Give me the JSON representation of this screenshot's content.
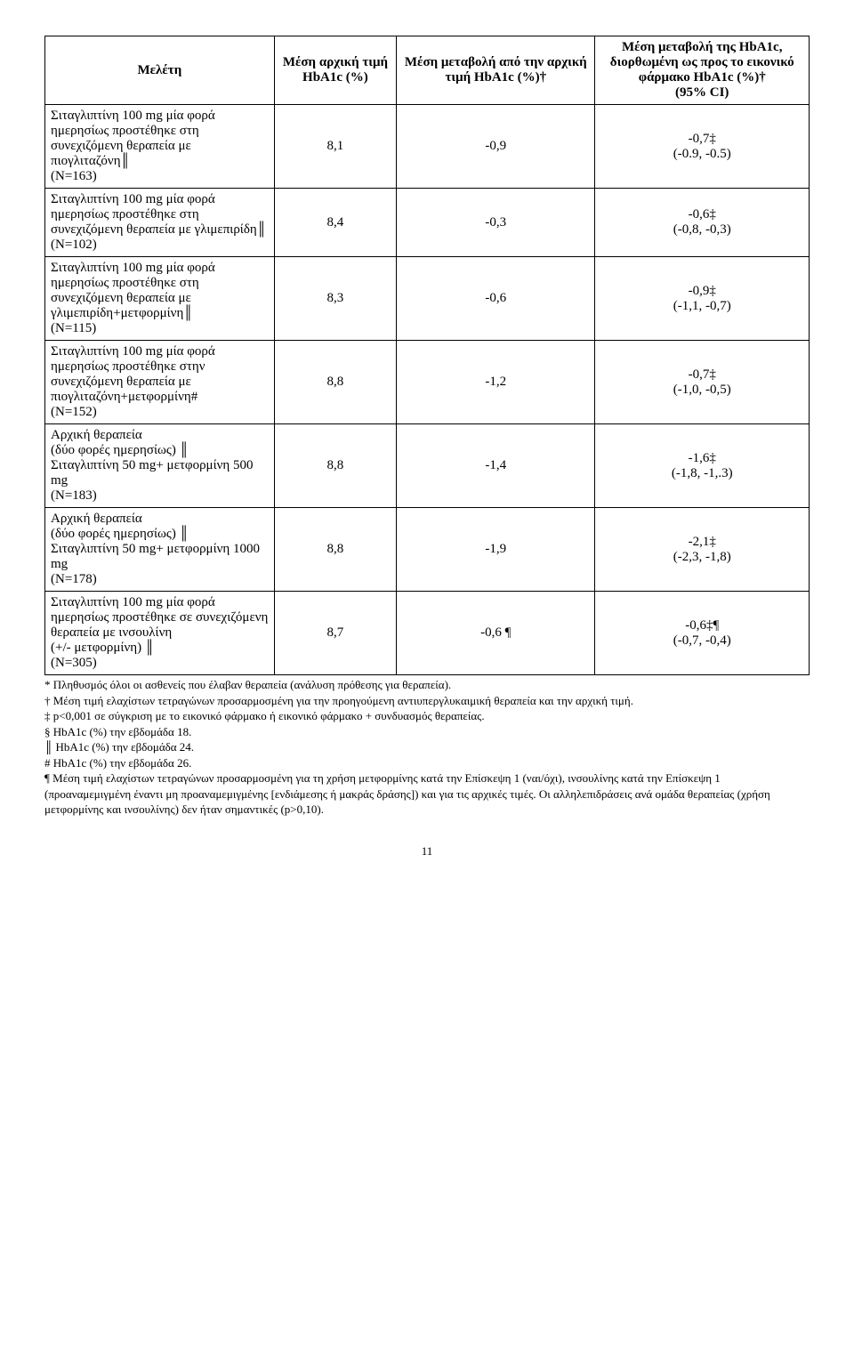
{
  "headers": {
    "study": "Μελέτη",
    "baseline": "Μέση αρχική τιμή HbA1c (%)",
    "change": "Μέση μεταβολή από την αρχική τιμή HbA1c (%)†",
    "corrected_l1": "Μέση μεταβολή της HbA1c, διορθωμένη ως προς το εικονικό φάρμακο HbA1c (%)†",
    "corrected_l2": "(95% CI)"
  },
  "rows": [
    {
      "study": "Σιταγλιπτίνη 100 mg μία φορά ημερησίως προστέθηκε στη συνεχιζόμενη θεραπεία με πιογλιταζόνη║\n(N=163)",
      "baseline": "8,1",
      "change": "-0,9",
      "corr_val": "-0,7‡",
      "corr_ci": "(-0.9, -0.5)"
    },
    {
      "study": "Σιταγλιπτίνη 100 mg μία φορά ημερησίως προστέθηκε στη συνεχιζόμενη θεραπεία με γλιμεπιρίδη║\n(N=102)",
      "baseline": "8,4",
      "change": "-0,3",
      "corr_val": "-0,6‡",
      "corr_ci": "(-0,8, -0,3)"
    },
    {
      "study": "Σιταγλιπτίνη 100 mg μία φορά ημερησίως προστέθηκε στη συνεχιζόμενη θεραπεία με γλιμεπιρίδη+μετφορμίνη║\n(N=115)",
      "baseline": "8,3",
      "change": "-0,6",
      "corr_val": "-0,9‡",
      "corr_ci": "(-1,1, -0,7)"
    },
    {
      "study": "Σιταγλιπτίνη 100 mg μία φορά ημερησίως προστέθηκε στην συνεχιζόμενη θεραπεία με πιογλιταζόνη+μετφορμίνη#\n(N=152)",
      "baseline": "8,8",
      "change": "-1,2",
      "corr_val": "-0,7‡",
      "corr_ci": "(-1,0, -0,5)"
    },
    {
      "study": "Αρχική θεραπεία\n(δύο φορές ημερησίως) ║\nΣιταγλιπτίνη 50 mg+ μετφορμίνη 500 mg\n(N=183)",
      "baseline": "8,8",
      "change": "-1,4",
      "corr_val": "-1,6‡",
      "corr_ci": "(-1,8, -1,.3)"
    },
    {
      "study": "Αρχική θεραπεία\n(δύο φορές ημερησίως) ║\nΣιταγλιπτίνη 50 mg+ μετφορμίνη 1000 mg\n(N=178)",
      "baseline": "8,8",
      "change": "-1,9",
      "corr_val": "-2,1‡",
      "corr_ci": "(-2,3, -1,8)"
    },
    {
      "study": "Σιταγλιπτίνη 100 mg μία φορά ημερησίως προστέθηκε σε συνεχιζόμενη θεραπεία με ινσουλίνη\n(+/- μετφορμίνη) ║\n(N=305)",
      "baseline": "8,7",
      "change": "-0,6 ¶",
      "corr_val": "-0,6‡¶",
      "corr_ci": "(-0,7, -0,4)"
    }
  ],
  "footnotes": [
    "* Πληθυσμός όλοι οι ασθενείς που έλαβαν θεραπεία (ανάλυση πρόθεσης για θεραπεία).",
    "† Μέση τιμή ελαχίστων τετραγώνων προσαρμοσμένη για την προηγούμενη αντιυπεργλυκαιμική θεραπεία και την αρχική τιμή.",
    "‡ p<0,001 σε σύγκριση με το εικονικό φάρμακο ή εικονικό φάρμακο + συνδυασμός θεραπείας.",
    "§ HbA1c (%) την εβδομάδα 18.",
    "║ HbA1c (%) την εβδομάδα 24.",
    "# HbA1c (%) την εβδομάδα 26.",
    "¶ Μέση τιμή ελαχίστων τετραγώνων προσαρμοσμένη για τη χρήση μετφορμίνης κατά την Επίσκεψη 1 (ναι/όχι), ινσουλίνης κατά την Επίσκεψη 1 (προαναμεμιγμένη έναντι μη προαναμεμιγμένης [ενδιάμεσης ή μακράς δράσης]) και για τις αρχικές τιμές. Οι αλληλεπιδράσεις ανά ομάδα θεραπείας (χρήση μετφορμίνης και ινσουλίνης) δεν ήταν σημαντικές (p>0,10)."
  ],
  "page_number": "11"
}
